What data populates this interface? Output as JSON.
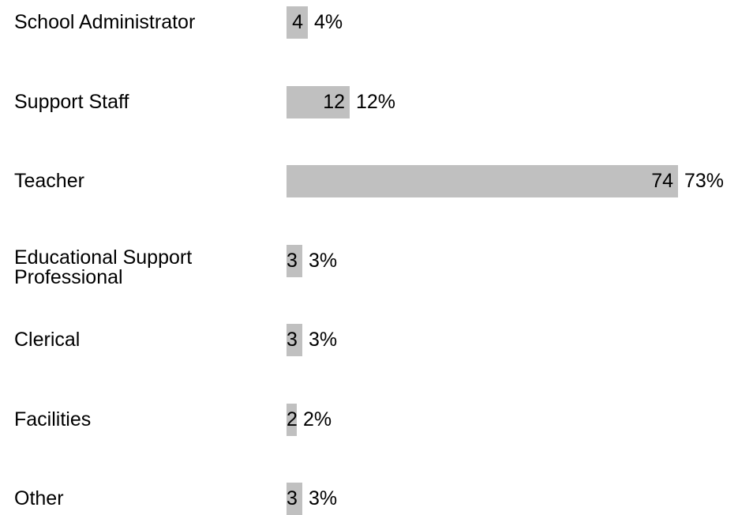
{
  "chart_data": {
    "type": "bar",
    "orientation": "horizontal",
    "categories": [
      "School Administrator",
      "Support Staff",
      "Teacher",
      "Educational Support\nProfessional",
      "Clerical",
      "Facilities",
      "Other"
    ],
    "values": [
      4,
      12,
      74,
      3,
      3,
      2,
      3
    ],
    "percent_labels": [
      "4%",
      "12%",
      "73%",
      "3%",
      "3%",
      "2%",
      "3%"
    ],
    "title": "",
    "xlabel": "",
    "ylabel": "",
    "grid": false,
    "legend": "none",
    "bar_color": "#c0c0c0",
    "text_color": "#000000"
  }
}
